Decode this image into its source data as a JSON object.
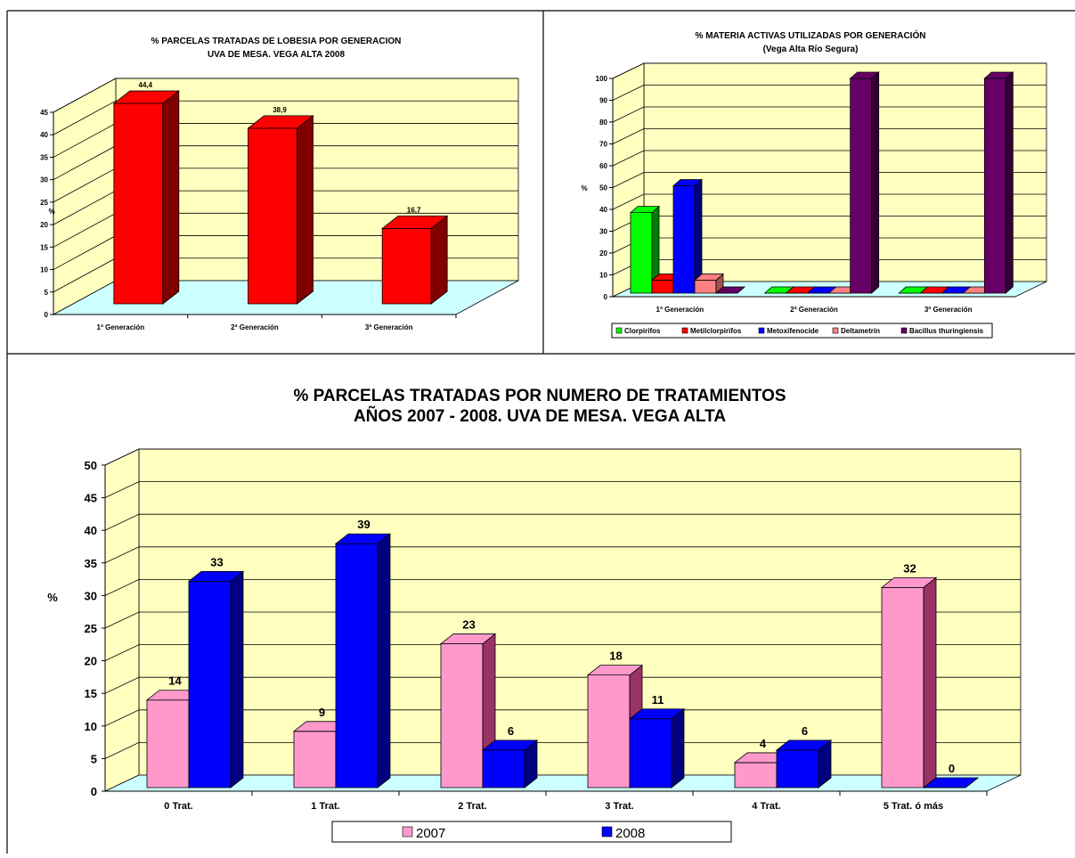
{
  "chart_data": [
    {
      "type": "bar",
      "title": "% PARCELAS TRATADAS DE LOBESIA POR GENERACION",
      "subtitle": "UVA DE MESA. VEGA ALTA 2008",
      "ylabel": "%",
      "categories": [
        "1ª Generación",
        "2ª Generación",
        "3ª Generación"
      ],
      "values": [
        44.4,
        38.9,
        16.7
      ],
      "value_labels": [
        "44,4",
        "38,9",
        "16,7"
      ],
      "ylim": [
        0,
        45
      ],
      "yticks": [
        "0",
        "5",
        "10",
        "15",
        "20",
        "25",
        "30",
        "35",
        "40",
        "45"
      ],
      "grid": true,
      "colors": {
        "bar": "#ff0000",
        "bar_side": "#800000",
        "wall": "#ffffc0",
        "floor": "#ccffff"
      }
    },
    {
      "type": "bar",
      "title": "% MATERIA ACTIVAS UTILIZADAS POR GENERACIÓN",
      "subtitle": "(Vega Alta Río Segura)",
      "ylabel": "%",
      "categories": [
        "1ª Generación",
        "2ª Generación",
        "3ª Generación"
      ],
      "series": [
        {
          "name": "Clorpirifos",
          "values": [
            37.5,
            0,
            0
          ],
          "color": "#00ff00",
          "side": "#008000"
        },
        {
          "name": "Metilclorpirifos",
          "values": [
            6,
            0,
            0
          ],
          "color": "#ff0000",
          "side": "#800000"
        },
        {
          "name": "Metoxifenocide",
          "values": [
            50,
            0,
            0
          ],
          "color": "#0000ff",
          "side": "#000080"
        },
        {
          "name": "Deltametrín",
          "values": [
            6,
            0,
            0
          ],
          "color": "#ff8080",
          "side": "#a05050"
        },
        {
          "name": "Bacillus thuringiensis",
          "values": [
            0,
            100,
            100
          ],
          "color": "#660066",
          "side": "#330033"
        }
      ],
      "ylim": [
        0,
        100
      ],
      "yticks": [
        "0",
        "10",
        "20",
        "30",
        "40",
        "50",
        "60",
        "70",
        "80",
        "90",
        "100"
      ],
      "grid": true,
      "legend": "bottom",
      "colors": {
        "wall": "#ffffc0",
        "floor": "#ccffff"
      }
    },
    {
      "type": "bar",
      "title": "% PARCELAS TRATADAS POR NUMERO DE TRATAMIENTOS",
      "subtitle": "AÑOS 2007 - 2008.  UVA DE MESA. VEGA ALTA",
      "ylabel": "%",
      "categories": [
        "0 Trat.",
        "1 Trat.",
        "2 Trat.",
        "3 Trat.",
        "4 Trat.",
        "5 Trat. ó más"
      ],
      "series": [
        {
          "name": "2007",
          "values": [
            14,
            9,
            23,
            18,
            4,
            32
          ],
          "color": "#ff99cc",
          "side": "#993366"
        },
        {
          "name": "2008",
          "values": [
            33,
            39,
            6,
            11,
            6,
            0
          ],
          "color": "#0000ff",
          "side": "#000080"
        }
      ],
      "ylim": [
        0,
        50
      ],
      "yticks": [
        "0",
        "5",
        "10",
        "15",
        "20",
        "25",
        "30",
        "35",
        "40",
        "45",
        "50"
      ],
      "grid": true,
      "legend": "bottom",
      "colors": {
        "wall": "#ffffc0",
        "floor": "#ccffff"
      }
    }
  ]
}
